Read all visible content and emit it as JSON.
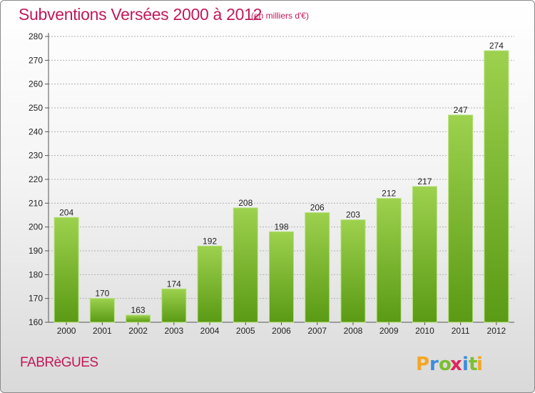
{
  "title": "Subventions Versées 2000 à 2012",
  "subtitle": "(en milliers d'€)",
  "commune": "FABRèGUES",
  "logo": {
    "letters": [
      "P",
      "r",
      "o",
      "x",
      "i",
      "t",
      "i"
    ],
    "colors": [
      "#f5a623",
      "#3c8dde",
      "#7cbf2f",
      "#e0245e",
      "#3c8dde",
      "#7cbf2f",
      "#f5a623"
    ]
  },
  "colors": {
    "title": "#c2185b",
    "bar_top": "#9dd14e",
    "bar_bottom": "#5a9a14",
    "grid": "#b0b0b0"
  },
  "chart_data": {
    "type": "bar",
    "categories": [
      "2000",
      "2001",
      "2002",
      "2003",
      "2004",
      "2005",
      "2006",
      "2007",
      "2008",
      "2009",
      "2010",
      "2011",
      "2012"
    ],
    "values": [
      204,
      170,
      163,
      174,
      192,
      208,
      198,
      206,
      203,
      212,
      217,
      247,
      274
    ],
    "data_labels": [
      "204",
      "170",
      "163",
      "174",
      "192",
      "208",
      "198",
      "206",
      "203",
      "212",
      "217",
      "247",
      "274"
    ],
    "ylim": [
      160,
      280
    ],
    "yticks": [
      160,
      170,
      180,
      190,
      200,
      210,
      220,
      230,
      240,
      250,
      260,
      270,
      280
    ],
    "grid": true,
    "xlabel": "",
    "ylabel": ""
  }
}
